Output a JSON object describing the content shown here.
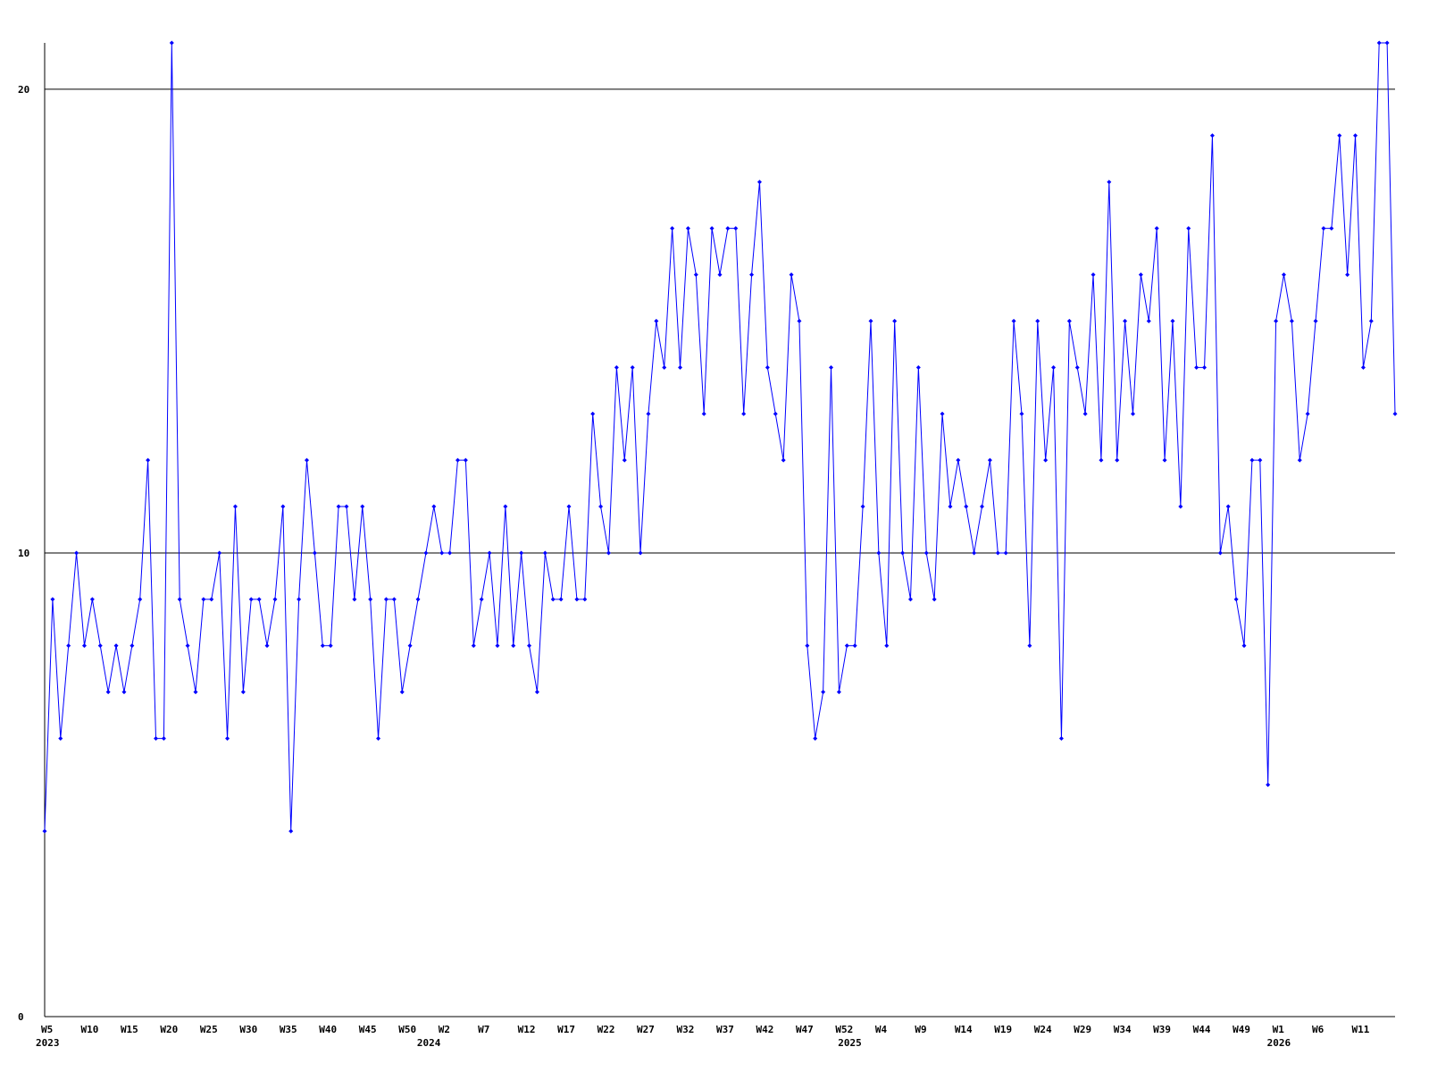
{
  "chart_data": {
    "type": "line",
    "title": "",
    "xlabel": "",
    "ylabel": "",
    "ylim": [
      0,
      21
    ],
    "y_ticks": [
      {
        "value": 0,
        "label": "0"
      },
      {
        "value": 10,
        "label": "10"
      },
      {
        "value": 20,
        "label": "20"
      }
    ],
    "grid_lines_at": [
      10,
      20
    ],
    "x_tick_labels": [
      {
        "index": 0,
        "label": "W5"
      },
      {
        "index": 5,
        "label": "W10"
      },
      {
        "index": 10,
        "label": "W15"
      },
      {
        "index": 15,
        "label": "W20"
      },
      {
        "index": 20,
        "label": "W25"
      },
      {
        "index": 25,
        "label": "W30"
      },
      {
        "index": 30,
        "label": "W35"
      },
      {
        "index": 35,
        "label": "W40"
      },
      {
        "index": 40,
        "label": "W45"
      },
      {
        "index": 45,
        "label": "W50"
      },
      {
        "index": 50,
        "label": "W2"
      },
      {
        "index": 55,
        "label": "W7"
      },
      {
        "index": 60,
        "label": "W12"
      },
      {
        "index": 65,
        "label": "W17"
      },
      {
        "index": 70,
        "label": "W22"
      },
      {
        "index": 75,
        "label": "W27"
      },
      {
        "index": 80,
        "label": "W32"
      },
      {
        "index": 85,
        "label": "W37"
      },
      {
        "index": 90,
        "label": "W42"
      },
      {
        "index": 95,
        "label": "W47"
      },
      {
        "index": 100,
        "label": "W52"
      },
      {
        "index": 105,
        "label": "W4"
      },
      {
        "index": 110,
        "label": "W9"
      },
      {
        "index": 115,
        "label": "W14"
      },
      {
        "index": 120,
        "label": "W19"
      },
      {
        "index": 125,
        "label": "W24"
      },
      {
        "index": 130,
        "label": "W29"
      },
      {
        "index": 135,
        "label": "W34"
      },
      {
        "index": 140,
        "label": "W39"
      },
      {
        "index": 145,
        "label": "W44"
      },
      {
        "index": 150,
        "label": "W49"
      },
      {
        "index": 155,
        "label": "W1"
      },
      {
        "index": 160,
        "label": "W6"
      },
      {
        "index": 165,
        "label": "W11"
      }
    ],
    "year_labels": [
      {
        "index": 0,
        "label": "2023"
      },
      {
        "index": 48,
        "label": "2024"
      },
      {
        "index": 101,
        "label": "2025"
      },
      {
        "index": 155,
        "label": "2026"
      }
    ],
    "series": [
      {
        "color": "#0000ff",
        "values": [
          4,
          9,
          6,
          8,
          10,
          8,
          9,
          8,
          7,
          8,
          7,
          8,
          9,
          12,
          6,
          6,
          21,
          9,
          8,
          7,
          9,
          9,
          10,
          6,
          11,
          7,
          9,
          9,
          8,
          9,
          11,
          4,
          9,
          12,
          10,
          8,
          8,
          11,
          11,
          9,
          11,
          9,
          6,
          9,
          9,
          7,
          8,
          9,
          10,
          11,
          10,
          10,
          12,
          12,
          8,
          9,
          10,
          8,
          11,
          8,
          10,
          8,
          7,
          10,
          9,
          9,
          11,
          9,
          9,
          13,
          11,
          10,
          14,
          12,
          14,
          10,
          13,
          15,
          14,
          17,
          14,
          17,
          16,
          13,
          17,
          16,
          17,
          17,
          13,
          16,
          18,
          14,
          13,
          12,
          16,
          15,
          8,
          6,
          7,
          14,
          7,
          8,
          8,
          11,
          15,
          10,
          8,
          15,
          10,
          9,
          14,
          10,
          9,
          13,
          11,
          12,
          11,
          10,
          11,
          12,
          10,
          10,
          15,
          13,
          8,
          15,
          12,
          14,
          6,
          15,
          14,
          13,
          16,
          12,
          18,
          12,
          15,
          13,
          16,
          15,
          17,
          12,
          15,
          11,
          17,
          14,
          14,
          19,
          10,
          11,
          9,
          8,
          12,
          12,
          5,
          15,
          16,
          15,
          12,
          13,
          15,
          17,
          17,
          19,
          16,
          19,
          14,
          15,
          21,
          21,
          13
        ]
      }
    ]
  }
}
